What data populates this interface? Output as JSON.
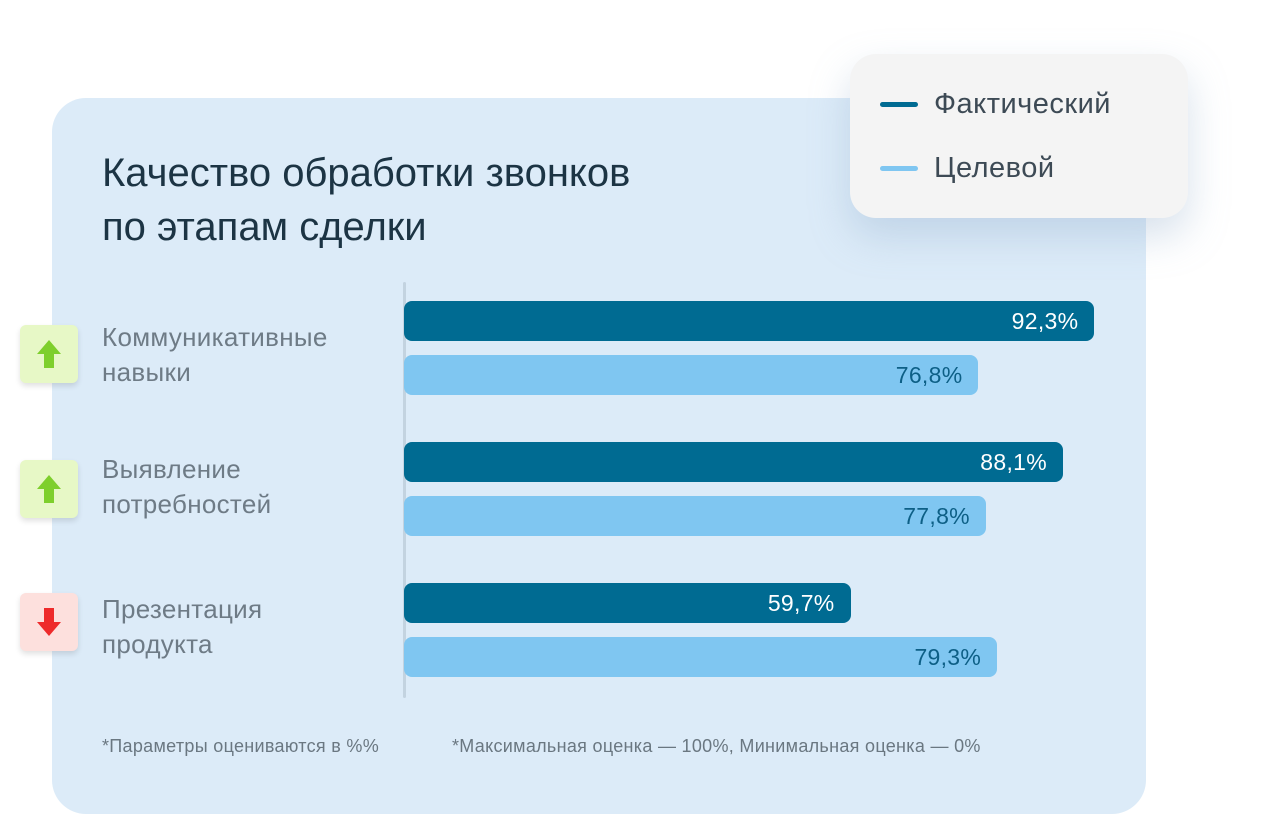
{
  "chart_data": {
    "type": "bar",
    "orientation": "horizontal",
    "title": "Качество обработки звонков по этапам сделки",
    "title_lines": [
      "Качество обработки звонков",
      "по этапам сделки"
    ],
    "categories": [
      {
        "lines": [
          "Коммуникативные",
          "навыки"
        ],
        "trend": "up"
      },
      {
        "lines": [
          "Выявление",
          "потребностей"
        ],
        "trend": "up"
      },
      {
        "lines": [
          "Презентация",
          "продукта"
        ],
        "trend": "down"
      }
    ],
    "series": [
      {
        "name": "Фактический",
        "color": "#006b92",
        "values": [
          92.3,
          88.1,
          59.7
        ],
        "labels": [
          "92,3%",
          "88,1%",
          "59,7%"
        ]
      },
      {
        "name": "Целевой",
        "color": "#7fc6f1",
        "values": [
          76.8,
          77.8,
          79.3
        ],
        "labels": [
          "76,8%",
          "77,8%",
          "79,3%"
        ]
      }
    ],
    "xlim": [
      0,
      100
    ],
    "legend_position": "top-right",
    "grid": false,
    "footnotes": [
      "*Параметры оцениваются в %%",
      "*Максимальная оценка — 100%, Минимальная оценка — 0%"
    ]
  },
  "colors": {
    "trend_up": "#7ecf2c",
    "trend_down": "#ee2b2b"
  },
  "icons": {
    "trend_up": "arrow-up-icon",
    "trend_down": "arrow-down-icon"
  }
}
